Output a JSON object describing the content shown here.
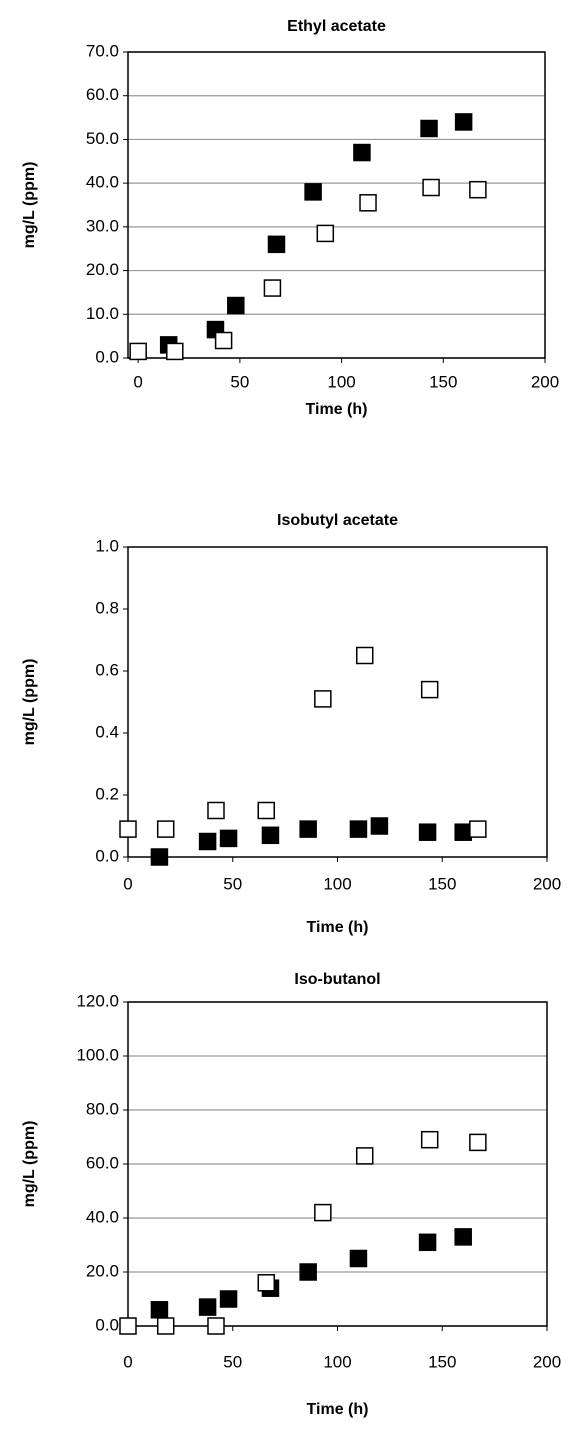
{
  "chart_data": [
    {
      "type": "scatter",
      "title": "Ethyl acetate",
      "xlabel": "Time (h)",
      "ylabel": "mg/L (ppm)",
      "xlim": [
        -5,
        200
      ],
      "xticks": [
        0,
        50,
        100,
        150,
        200
      ],
      "ylim": [
        0,
        70
      ],
      "yticks": [
        {
          "value": 0,
          "label": "0.0"
        },
        {
          "value": 10,
          "label": "10.0"
        },
        {
          "value": 20,
          "label": "20.0"
        },
        {
          "value": 30,
          "label": "30.0"
        },
        {
          "value": 40,
          "label": "40.0"
        },
        {
          "value": 50,
          "label": "50.0"
        },
        {
          "value": 60,
          "label": "60.0"
        },
        {
          "value": 70,
          "label": "70.0"
        }
      ],
      "grid": true,
      "series": [
        {
          "color": "#000000",
          "x": [
            15,
            38,
            48,
            68,
            86,
            110,
            143,
            160
          ],
          "values": [
            3.0,
            6.5,
            12.0,
            26.0,
            38.0,
            47.0,
            52.5,
            54.0
          ]
        },
        {
          "color": "#ffffff",
          "x": [
            0,
            18,
            42,
            66,
            92,
            113,
            144,
            167
          ],
          "values": [
            1.5,
            1.5,
            4.0,
            16.0,
            28.5,
            35.5,
            39.0,
            38.5
          ]
        }
      ]
    },
    {
      "type": "scatter",
      "title": "Isobutyl acetate",
      "xlabel": "Time (h)",
      "ylabel": "mg/L (ppm)",
      "xlim": [
        0,
        200
      ],
      "xticks": [
        0,
        50,
        100,
        150,
        200
      ],
      "ylim": [
        0,
        1
      ],
      "yticks": [
        {
          "value": 0,
          "label": "0.0"
        },
        {
          "value": 0.2,
          "label": "0.2"
        },
        {
          "value": 0.4,
          "label": "0.4"
        },
        {
          "value": 0.6,
          "label": "0.6"
        },
        {
          "value": 0.8,
          "label": "0.8"
        },
        {
          "value": 1,
          "label": "1.0"
        }
      ],
      "grid": false,
      "series": [
        {
          "color": "#000000",
          "x": [
            15,
            38,
            48,
            68,
            86,
            110,
            120,
            143,
            160
          ],
          "values": [
            0.0,
            0.05,
            0.06,
            0.07,
            0.09,
            0.09,
            0.1,
            0.08,
            0.08
          ]
        },
        {
          "color": "#ffffff",
          "x": [
            0,
            18,
            42,
            66,
            93,
            113,
            144,
            167
          ],
          "values": [
            0.09,
            0.09,
            0.15,
            0.15,
            0.51,
            0.65,
            0.54,
            0.09
          ]
        }
      ]
    },
    {
      "type": "scatter",
      "title": "Iso-butanol",
      "xlabel": "Time (h)",
      "ylabel": "mg/L (ppm)",
      "xlim": [
        0,
        200
      ],
      "xticks": [
        0,
        50,
        100,
        150,
        200
      ],
      "ylim": [
        0,
        120
      ],
      "yticks": [
        {
          "value": 0,
          "label": "0.0"
        },
        {
          "value": 20,
          "label": "20.0"
        },
        {
          "value": 40,
          "label": "40.0"
        },
        {
          "value": 60,
          "label": "60.0"
        },
        {
          "value": 80,
          "label": "80.0"
        },
        {
          "value": 100,
          "label": "100.0"
        },
        {
          "value": 120,
          "label": "120.0"
        }
      ],
      "grid": true,
      "series": [
        {
          "color": "#000000",
          "x": [
            15,
            38,
            48,
            68,
            86,
            110,
            143,
            160
          ],
          "values": [
            6,
            7,
            10,
            14,
            20,
            25,
            31,
            33
          ]
        },
        {
          "color": "#ffffff",
          "x": [
            0,
            18,
            42,
            66,
            93,
            113,
            144,
            167
          ],
          "values": [
            0,
            0,
            0,
            16,
            42,
            63,
            69,
            68
          ]
        }
      ]
    }
  ]
}
